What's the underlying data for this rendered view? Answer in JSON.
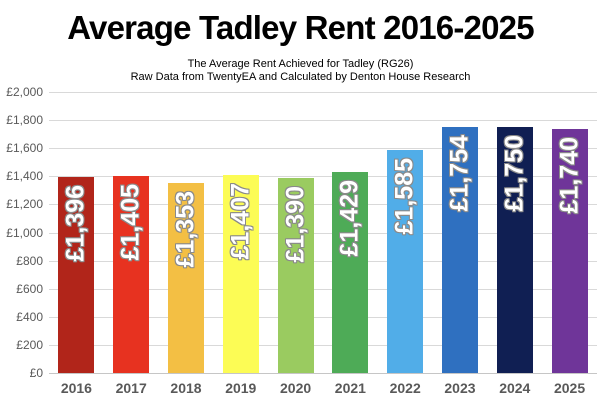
{
  "title": "Average Tadley Rent 2016-2025",
  "subtitle": {
    "line1": "The Average Rent Achieved for Tadley (RG26)",
    "line2": "Raw Data from TwentyEA and Calculated by Denton House Research"
  },
  "chart_data": {
    "type": "bar",
    "title": "Average Tadley Rent 2016-2025",
    "subtitle_lines": [
      "The Average Rent Achieved for Tadley (RG26)",
      "Raw Data from TwentyEA and Calculated by Denton House Research"
    ],
    "categories": [
      "2016",
      "2017",
      "2018",
      "2019",
      "2020",
      "2021",
      "2022",
      "2023",
      "2024",
      "2025"
    ],
    "values": [
      1396,
      1405,
      1353,
      1407,
      1390,
      1429,
      1585,
      1754,
      1750,
      1740
    ],
    "bar_labels": [
      "£1,396",
      "£1,405",
      "£1,353",
      "£1,407",
      "£1,390",
      "£1,429",
      "£1,585",
      "£1,754",
      "£1,750",
      "£1,740"
    ],
    "bar_colors": [
      "#B1251A",
      "#E73220",
      "#F3BF44",
      "#FCFC55",
      "#9ACB60",
      "#4EAB57",
      "#51ADE8",
      "#2F70C0",
      "#101F53",
      "#6F3599"
    ],
    "xlabel": "",
    "ylabel": "",
    "ylim": [
      0,
      2000
    ],
    "ytick_step": 200,
    "ytick_labels_top_to_bottom": [
      "£2,000",
      "£1,800",
      "£1,600",
      "£1,400",
      "£1,200",
      "£1,000",
      "£800",
      "£600",
      "£400",
      "£200",
      "£0"
    ],
    "grid": true,
    "legend": false,
    "value_label_color": "#FFFFFF",
    "value_label_outline_color": "#8A8A8A",
    "axis_text_color": "#595959",
    "gridline_color": "#D9D9D9"
  }
}
